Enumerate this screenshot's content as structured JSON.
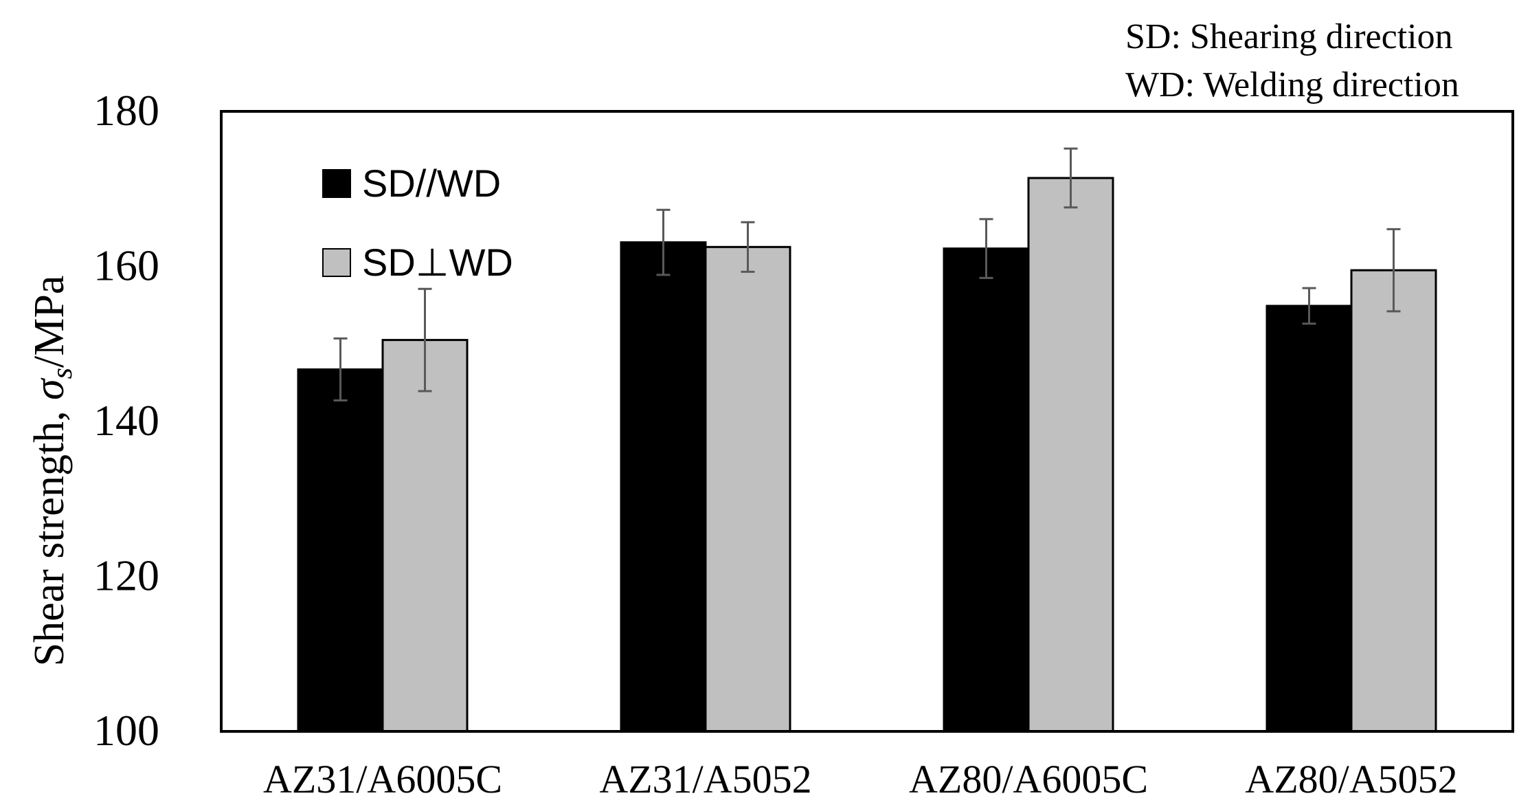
{
  "chart_data": {
    "type": "bar",
    "title": "",
    "xlabel": "",
    "ylabel_main": "Shear strength, ",
    "ylabel_symbol": "σ",
    "ylabel_subscript": "s",
    "ylabel_unit": "/MPa",
    "ylim": [
      100,
      180
    ],
    "yticks": [
      "100",
      "120",
      "140",
      "160",
      "180"
    ],
    "categories": [
      "AZ31/A6005C",
      "AZ31/A5052",
      "AZ80/A6005C",
      "AZ80/A5052"
    ],
    "series": [
      {
        "name": "SD//WD",
        "color": "#000000",
        "values": [
          146.7,
          163.1,
          162.3,
          154.9
        ],
        "errors": [
          4.0,
          4.2,
          3.8,
          2.3
        ]
      },
      {
        "name": "SD⊥WD",
        "color": "#c0c0c0",
        "values": [
          150.5,
          162.5,
          171.4,
          159.5
        ],
        "errors": [
          6.6,
          3.2,
          3.8,
          5.3
        ]
      }
    ],
    "legend_position": "top-left",
    "annotations": [
      "SD: Shearing direction",
      "WD: Welding direction"
    ],
    "grid": false
  }
}
